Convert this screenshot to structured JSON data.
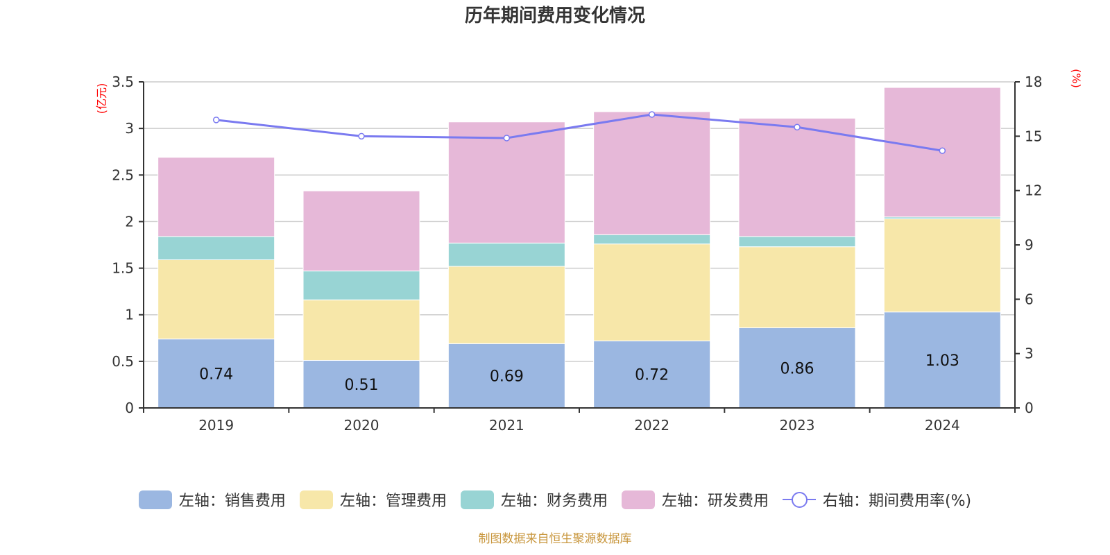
{
  "title": "历年期间费用变化情况",
  "footer": "制图数据来自恒生聚源数据库",
  "colors": {
    "sales": "#9bb7e1",
    "admin": "#f7e7a9",
    "finance": "#98d4d4",
    "rnd": "#e6b8d8",
    "rate": "#7a7af0",
    "unit": "#ff0000",
    "footer": "#c8963c"
  },
  "legend": [
    {
      "label": "左轴：销售费用",
      "key": "sales"
    },
    {
      "label": "左轴：管理费用",
      "key": "admin"
    },
    {
      "label": "左轴：财务费用",
      "key": "finance"
    },
    {
      "label": "左轴：研发费用",
      "key": "rnd"
    },
    {
      "label": "右轴：期间费用率(%)",
      "key": "rate"
    }
  ],
  "chart_data": {
    "type": "bar",
    "stacked": true,
    "title": "历年期间费用变化情况",
    "categories": [
      "2019",
      "2020",
      "2021",
      "2022",
      "2023",
      "2024"
    ],
    "series": [
      {
        "name": "左轴：销售费用",
        "key": "sales",
        "axis": "left",
        "values": [
          0.74,
          0.51,
          0.69,
          0.72,
          0.86,
          1.03
        ],
        "show_labels": true
      },
      {
        "name": "左轴：管理费用",
        "key": "admin",
        "axis": "left",
        "values": [
          0.85,
          0.65,
          0.83,
          1.04,
          0.87,
          1.0
        ]
      },
      {
        "name": "左轴：财务费用",
        "key": "finance",
        "axis": "left",
        "values": [
          0.25,
          0.31,
          0.25,
          0.1,
          0.11,
          0.02
        ]
      },
      {
        "name": "左轴：研发费用",
        "key": "rnd",
        "axis": "left",
        "values": [
          0.85,
          0.86,
          1.3,
          1.32,
          1.27,
          1.39
        ]
      },
      {
        "name": "右轴：期间费用率(%)",
        "key": "rate",
        "axis": "right",
        "type": "line",
        "values": [
          15.9,
          15.0,
          14.9,
          16.2,
          15.5,
          14.2
        ]
      }
    ],
    "y_left": {
      "label": "(亿元)",
      "min": 0,
      "max": 3.5,
      "ticks": [
        "0",
        "0.5",
        "1",
        "1.5",
        "2",
        "2.5",
        "3",
        "3.5"
      ]
    },
    "y_right": {
      "label": "(%)",
      "min": 0,
      "max": 18,
      "ticks": [
        "0",
        "3",
        "6",
        "9",
        "12",
        "15",
        "18"
      ]
    },
    "grid": true,
    "legend_position": "bottom"
  }
}
